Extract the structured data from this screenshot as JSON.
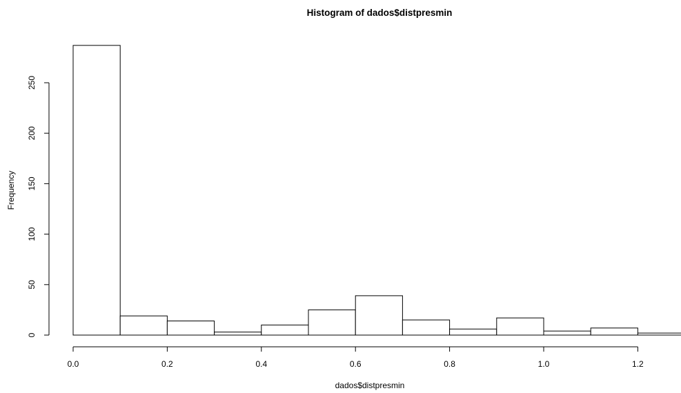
{
  "chart_data": {
    "type": "bar",
    "subtype": "histogram",
    "title": "Histogram of dados$distpresmin",
    "xlabel": "dados$distpresmin",
    "ylabel": "Frequency",
    "bins": [
      {
        "start": 0.0,
        "end": 0.1,
        "count": 287
      },
      {
        "start": 0.1,
        "end": 0.2,
        "count": 19
      },
      {
        "start": 0.2,
        "end": 0.3,
        "count": 14
      },
      {
        "start": 0.3,
        "end": 0.4,
        "count": 3
      },
      {
        "start": 0.4,
        "end": 0.5,
        "count": 10
      },
      {
        "start": 0.5,
        "end": 0.6,
        "count": 25
      },
      {
        "start": 0.6,
        "end": 0.7,
        "count": 39
      },
      {
        "start": 0.7,
        "end": 0.8,
        "count": 15
      },
      {
        "start": 0.8,
        "end": 0.9,
        "count": 6
      },
      {
        "start": 0.9,
        "end": 1.0,
        "count": 17
      },
      {
        "start": 1.0,
        "end": 1.1,
        "count": 4
      },
      {
        "start": 1.1,
        "end": 1.2,
        "count": 7
      },
      {
        "start": 1.2,
        "end": 1.3,
        "count": 2
      }
    ],
    "xlim": [
      0.0,
      1.3
    ],
    "ylim": [
      0,
      300
    ],
    "xticks": [
      {
        "value": 0.0,
        "label": "0.0"
      },
      {
        "value": 0.2,
        "label": "0.2"
      },
      {
        "value": 0.4,
        "label": "0.4"
      },
      {
        "value": 0.6,
        "label": "0.6"
      },
      {
        "value": 0.8,
        "label": "0.8"
      },
      {
        "value": 1.0,
        "label": "1.0"
      },
      {
        "value": 1.2,
        "label": "1.2"
      }
    ],
    "yticks": [
      {
        "value": 0,
        "label": "0"
      },
      {
        "value": 50,
        "label": "50"
      },
      {
        "value": 100,
        "label": "100"
      },
      {
        "value": 150,
        "label": "150"
      },
      {
        "value": 200,
        "label": "200"
      },
      {
        "value": 250,
        "label": "250"
      }
    ],
    "grid": false,
    "colors": {
      "bar_fill": "#ffffff",
      "bar_stroke": "#000000",
      "background": "#ffffff"
    }
  }
}
